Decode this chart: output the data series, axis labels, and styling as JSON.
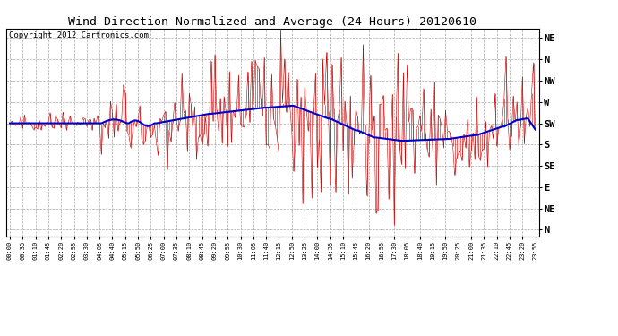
{
  "title": "Wind Direction Normalized and Average (24 Hours) 20120610",
  "copyright_text": "Copyright 2012 Cartronics.com",
  "y_tick_positions": [
    405,
    360,
    315,
    270,
    225,
    180,
    135,
    90,
    45,
    0
  ],
  "y_tick_labels": [
    "NE",
    "N",
    "NW",
    "W",
    "SW",
    "S",
    "SE",
    "E",
    "NE",
    "N"
  ],
  "ylim_min": -15,
  "ylim_max": 425,
  "background_color": "#ffffff",
  "grid_color": "#aaaaaa",
  "red_color": "#cc0000",
  "blue_color": "#0000cc",
  "title_fontsize": 9.5,
  "copyright_fontsize": 6.5,
  "n_points": 288,
  "minutes_per_point": 5,
  "xtick_interval_minutes": 35
}
